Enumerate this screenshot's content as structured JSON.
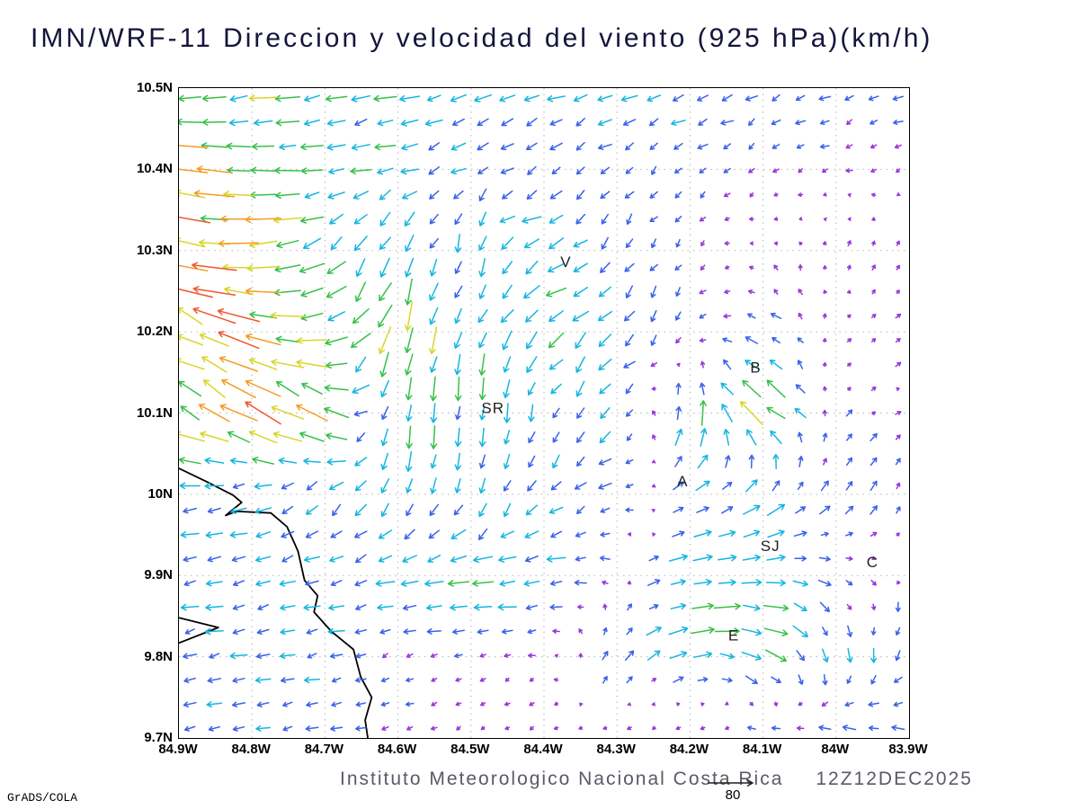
{
  "title": "IMN/WRF-11 Direccion y velocidad del viento (925 hPa)(km/h)",
  "footer": {
    "institute": "Instituto Meteorologico Nacional Costa Rica",
    "timestamp": "12Z12DEC2025",
    "reference_label": "80",
    "credit": "GrADS/COLA"
  },
  "axes": {
    "lat_labels": [
      "10.5N",
      "10.4N",
      "10.3N",
      "10.2N",
      "10.1N",
      "10N",
      "9.9N",
      "9.8N",
      "9.7N"
    ],
    "lon_labels": [
      "84.9W",
      "84.8W",
      "84.7W",
      "84.6W",
      "84.5W",
      "84.4W",
      "84.3W",
      "84.2W",
      "84.1W",
      "84W",
      "83.9W"
    ]
  },
  "chart_data": {
    "type": "vector_field",
    "title": "IMN/WRF-11 Direccion y velocidad del viento (925 hPa)(km/h)",
    "model": "IMN/WRF-11",
    "level": "925 hPa",
    "units": "km/h",
    "valid_time": "12Z12DEC2025",
    "lon_range_w": [
      84.9,
      83.9
    ],
    "lat_range": [
      9.7,
      10.5
    ],
    "grid_lon_w": [
      84.9,
      84.8,
      84.7,
      84.6,
      84.5,
      84.4,
      84.3,
      84.2,
      84.1,
      84.0,
      83.9
    ],
    "grid_lat": [
      10.5,
      10.4,
      10.3,
      10.2,
      10.1,
      10.0,
      9.9,
      9.8,
      9.7
    ],
    "u_km_h": [
      [
        -40,
        -38,
        -36,
        -32,
        -30,
        -28,
        -26,
        -24,
        -20,
        -18,
        -16
      ],
      [
        -56,
        -48,
        -32,
        -24,
        -18,
        -16,
        -14,
        -12,
        -10,
        -8,
        -8
      ],
      [
        -68,
        -56,
        -28,
        -12,
        -6,
        -34,
        -12,
        -8,
        -4,
        2,
        4
      ],
      [
        -64,
        -60,
        -44,
        -16,
        -8,
        -28,
        -16,
        -8,
        -20,
        4,
        6
      ],
      [
        -44,
        -52,
        -40,
        -4,
        -2,
        -6,
        -16,
        10,
        -40,
        6,
        8
      ],
      [
        -26,
        -24,
        -20,
        -8,
        -6,
        -14,
        -20,
        24,
        20,
        12,
        6
      ],
      [
        -26,
        -24,
        -24,
        -28,
        -36,
        -32,
        -8,
        36,
        40,
        16,
        -4
      ],
      [
        -24,
        -24,
        -22,
        -12,
        -10,
        -8,
        12,
        32,
        36,
        4,
        -8
      ],
      [
        -22,
        -20,
        -18,
        -10,
        -6,
        -6,
        -8,
        -14,
        -18,
        -24,
        -22
      ]
    ],
    "v_km_h": [
      [
        -4,
        -6,
        -6,
        -6,
        -8,
        -8,
        -8,
        -8,
        -8,
        -6,
        -6
      ],
      [
        8,
        4,
        -4,
        -8,
        -12,
        -12,
        -10,
        -8,
        -6,
        -4,
        -4
      ],
      [
        16,
        -8,
        -16,
        -28,
        -24,
        -14,
        -16,
        -8,
        4,
        8,
        6
      ],
      [
        28,
        20,
        -12,
        -44,
        -32,
        -20,
        -24,
        -12,
        12,
        4,
        4
      ],
      [
        20,
        32,
        24,
        -36,
        -32,
        -24,
        -20,
        40,
        30,
        8,
        4
      ],
      [
        -4,
        -8,
        -16,
        -28,
        -26,
        -18,
        -6,
        12,
        16,
        16,
        14
      ],
      [
        -4,
        -6,
        -6,
        -6,
        -4,
        -4,
        4,
        6,
        4,
        -8,
        -6
      ],
      [
        -4,
        -4,
        -4,
        -4,
        -4,
        -2,
        16,
        12,
        -20,
        -22,
        -18
      ],
      [
        -4,
        -4,
        -4,
        -4,
        -4,
        -4,
        -4,
        -4,
        4,
        6,
        6
      ]
    ],
    "speed_color_scale": [
      {
        "max": 12,
        "color": "#9b35dd"
      },
      {
        "max": 24,
        "color": "#3a62e8"
      },
      {
        "max": 36,
        "color": "#17b5e0"
      },
      {
        "max": 48,
        "color": "#38c04a"
      },
      {
        "max": 60,
        "color": "#d8d62a"
      },
      {
        "max": 72,
        "color": "#f59b26"
      },
      {
        "max": 84,
        "color": "#f2552c"
      },
      {
        "max": 999,
        "color": "#ee2d96"
      }
    ],
    "reference_vector_km_h": 80,
    "cities": [
      {
        "label": "V",
        "lon_w": 84.37,
        "lat": 10.28
      },
      {
        "label": "B",
        "lon_w": 84.11,
        "lat": 10.15
      },
      {
        "label": "SR",
        "lon_w": 84.47,
        "lat": 10.1
      },
      {
        "label": "A",
        "lon_w": 84.21,
        "lat": 10.01
      },
      {
        "label": "SJ",
        "lon_w": 84.09,
        "lat": 9.93
      },
      {
        "label": "C",
        "lon_w": 83.95,
        "lat": 9.91
      },
      {
        "label": "E",
        "lon_w": 84.14,
        "lat": 9.82
      }
    ],
    "coastline": [
      [
        84.9,
        10.032
      ],
      [
        84.861,
        10.015
      ],
      [
        84.826,
        9.999
      ],
      [
        84.814,
        9.99
      ],
      [
        84.836,
        9.974
      ],
      [
        84.821,
        9.979
      ],
      [
        84.774,
        9.977
      ],
      [
        84.752,
        9.96
      ],
      [
        84.737,
        9.93
      ],
      [
        84.728,
        9.894
      ],
      [
        84.71,
        9.875
      ],
      [
        84.715,
        9.855
      ],
      [
        84.691,
        9.831
      ],
      [
        84.661,
        9.809
      ],
      [
        84.651,
        9.775
      ],
      [
        84.636,
        9.75
      ],
      [
        84.645,
        9.722
      ],
      [
        84.641,
        9.698
      ]
    ],
    "peninsula": [
      [
        84.9,
        9.848
      ],
      [
        84.846,
        9.836
      ],
      [
        84.9,
        9.817
      ]
    ],
    "grid_style": {
      "line": "dotted",
      "color": "#b3b3b3"
    }
  }
}
